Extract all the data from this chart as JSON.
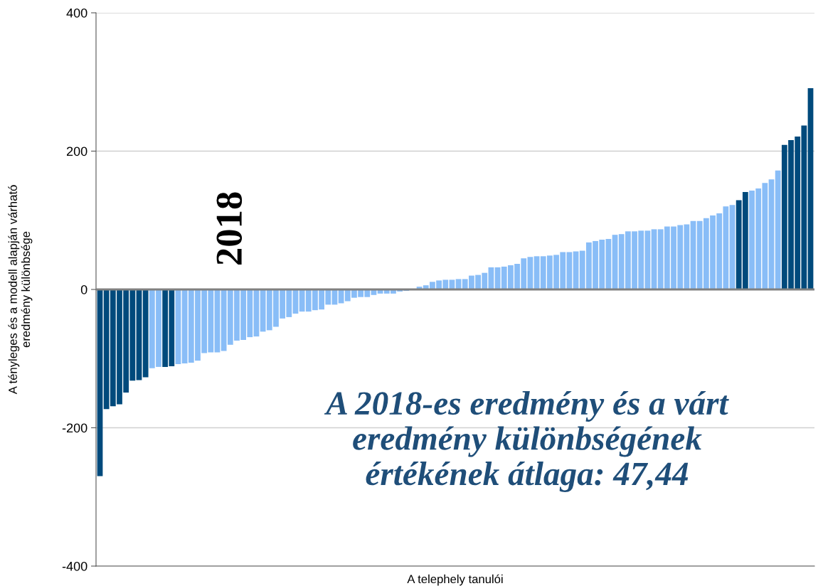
{
  "chart_data": {
    "type": "bar",
    "xlabel": "A telephely tanulói",
    "ylabel": "A tényleges és a modell alapján várható\neredmény különbsége",
    "annotations": [
      "2018",
      "A 2018-es eredmény és a várt\neredmény különbségének\nértékének átlaga: 47,44"
    ],
    "categories": [
      null,
      null,
      null,
      null,
      null,
      null,
      null,
      null,
      null,
      null,
      null,
      null,
      null,
      null,
      null,
      null,
      null,
      null,
      null,
      null,
      null,
      null,
      null,
      null,
      null,
      null,
      null,
      null,
      null,
      null,
      null,
      null,
      null,
      null,
      null,
      null,
      null,
      null,
      null,
      null,
      null,
      null,
      null,
      null,
      null,
      null,
      null,
      null,
      null,
      null,
      null,
      null,
      null,
      null,
      null,
      null,
      null,
      null,
      null,
      null,
      null,
      null,
      null,
      null,
      null,
      null,
      null,
      null,
      null,
      null,
      null,
      null,
      null,
      null,
      null,
      null,
      null,
      null,
      null,
      null,
      null,
      null,
      null,
      null,
      null,
      null,
      null,
      null,
      null,
      null,
      null,
      null,
      null,
      null,
      null,
      null,
      null,
      null,
      null,
      null,
      null,
      null,
      null,
      null,
      null,
      null,
      null,
      null,
      null,
      null
    ],
    "values": [
      -270,
      -173,
      -169,
      -166,
      -149,
      -132,
      -131,
      -127,
      -114,
      -112,
      -112,
      -111,
      -108,
      -107,
      -106,
      -103,
      -92,
      -91,
      -91,
      -89,
      -80,
      -74,
      -73,
      -69,
      -68,
      -61,
      -59,
      -54,
      -42,
      -40,
      -35,
      -32,
      -32,
      -30,
      -29,
      -22,
      -22,
      -20,
      -17,
      -12,
      -11,
      -11,
      -8,
      -6,
      -6,
      -6,
      -3,
      -2,
      -1,
      4,
      6,
      11,
      13,
      14,
      14,
      15,
      15,
      20,
      21,
      24,
      32,
      32,
      33,
      35,
      37,
      45,
      47,
      48,
      48,
      49,
      50,
      54,
      54,
      55,
      56,
      68,
      70,
      72,
      73,
      79,
      80,
      84,
      84,
      85,
      85,
      87,
      87,
      91,
      91,
      93,
      94,
      99,
      99,
      103,
      107,
      110,
      120,
      122,
      129,
      141,
      143,
      146,
      154,
      159,
      172,
      209,
      216,
      221,
      237,
      291
    ],
    "colors": [
      "#004a7c",
      "#004a7c",
      "#004a7c",
      "#004a7c",
      "#004a7c",
      "#004a7c",
      "#004a7c",
      "#004a7c",
      "#89bdf7",
      "#89bdf7",
      "#004a7c",
      "#004a7c",
      "#89bdf7",
      "#89bdf7",
      "#89bdf7",
      "#89bdf7",
      "#89bdf7",
      "#89bdf7",
      "#89bdf7",
      "#89bdf7",
      "#89bdf7",
      "#89bdf7",
      "#89bdf7",
      "#89bdf7",
      "#89bdf7",
      "#89bdf7",
      "#89bdf7",
      "#89bdf7",
      "#89bdf7",
      "#89bdf7",
      "#89bdf7",
      "#89bdf7",
      "#89bdf7",
      "#89bdf7",
      "#89bdf7",
      "#89bdf7",
      "#89bdf7",
      "#89bdf7",
      "#89bdf7",
      "#89bdf7",
      "#89bdf7",
      "#89bdf7",
      "#89bdf7",
      "#89bdf7",
      "#89bdf7",
      "#89bdf7",
      "#89bdf7",
      "#89bdf7",
      "#89bdf7",
      "#89bdf7",
      "#89bdf7",
      "#89bdf7",
      "#89bdf7",
      "#89bdf7",
      "#89bdf7",
      "#89bdf7",
      "#89bdf7",
      "#89bdf7",
      "#89bdf7",
      "#89bdf7",
      "#89bdf7",
      "#89bdf7",
      "#89bdf7",
      "#89bdf7",
      "#89bdf7",
      "#89bdf7",
      "#89bdf7",
      "#89bdf7",
      "#89bdf7",
      "#89bdf7",
      "#89bdf7",
      "#89bdf7",
      "#89bdf7",
      "#89bdf7",
      "#89bdf7",
      "#89bdf7",
      "#89bdf7",
      "#89bdf7",
      "#89bdf7",
      "#89bdf7",
      "#89bdf7",
      "#89bdf7",
      "#89bdf7",
      "#89bdf7",
      "#89bdf7",
      "#89bdf7",
      "#89bdf7",
      "#89bdf7",
      "#89bdf7",
      "#89bdf7",
      "#89bdf7",
      "#89bdf7",
      "#89bdf7",
      "#89bdf7",
      "#89bdf7",
      "#89bdf7",
      "#89bdf7",
      "#89bdf7",
      "#004a7c",
      "#004a7c",
      "#89bdf7",
      "#89bdf7",
      "#89bdf7",
      "#89bdf7",
      "#89bdf7",
      "#004a7c",
      "#004a7c",
      "#004a7c",
      "#004a7c",
      "#004a7c"
    ],
    "ylim": [
      -400,
      400
    ],
    "yticks": [
      -400,
      -200,
      0,
      200,
      400
    ],
    "ref_lines": [
      {
        "axis": "y",
        "value": 0,
        "color": "#808080"
      }
    ],
    "grid": "y"
  }
}
